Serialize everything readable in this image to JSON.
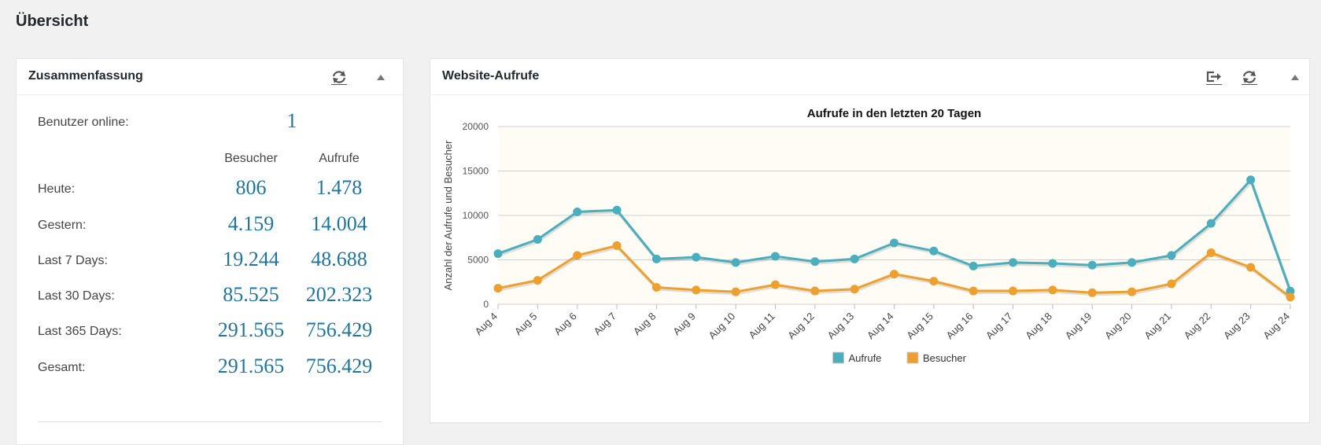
{
  "page": {
    "title": "Übersicht"
  },
  "summary": {
    "title": "Zusammenfassung",
    "online_label": "Benutzer online:",
    "online_value": "1",
    "col_visitors": "Besucher",
    "col_views": "Aufrufe",
    "rows": [
      {
        "label": "Heute:",
        "visitors": "806",
        "views": "1.478"
      },
      {
        "label": "Gestern:",
        "visitors": "4.159",
        "views": "14.004"
      },
      {
        "label": "Last 7 Days:",
        "visitors": "19.244",
        "views": "48.688"
      },
      {
        "label": "Last 30 Days:",
        "visitors": "85.525",
        "views": "202.323"
      },
      {
        "label": "Last 365 Days:",
        "visitors": "291.565",
        "views": "756.429"
      },
      {
        "label": "Gesamt:",
        "visitors": "291.565",
        "views": "756.429"
      }
    ]
  },
  "hits_box": {
    "title": "Website-Aufrufe"
  },
  "icons": [
    "refresh-icon",
    "toggle-arrow-icon",
    "export-icon"
  ],
  "colors": {
    "accent": "#21759b",
    "views": "#4aaebd",
    "visitors": "#eda02f",
    "plot_bg": "#fefcf4"
  },
  "chart_data": {
    "type": "line",
    "title": "Aufrufe in den letzten 20 Tagen",
    "ylabel": "Anzahl der Aufrufe und Besucher",
    "xlabel": "",
    "ylim": [
      0,
      20000
    ],
    "yticks": [
      "0",
      "5000",
      "10000",
      "15000",
      "20000"
    ],
    "categories": [
      "Aug 4",
      "Aug 5",
      "Aug 6",
      "Aug 7",
      "Aug 8",
      "Aug 9",
      "Aug 10",
      "Aug 11",
      "Aug 12",
      "Aug 13",
      "Aug 14",
      "Aug 15",
      "Aug 16",
      "Aug 17",
      "Aug 18",
      "Aug 19",
      "Aug 20",
      "Aug 21",
      "Aug 22",
      "Aug 23",
      "Aug 24"
    ],
    "series": [
      {
        "name": "Aufrufe",
        "color": "#4aaebd",
        "values": [
          5700,
          7300,
          10400,
          10600,
          5100,
          5300,
          4700,
          5400,
          4800,
          5100,
          6900,
          6000,
          4300,
          4700,
          4600,
          4400,
          4700,
          5500,
          9100,
          14000,
          1478
        ]
      },
      {
        "name": "Besucher",
        "color": "#eda02f",
        "values": [
          1800,
          2700,
          5500,
          6600,
          1900,
          1600,
          1400,
          2200,
          1500,
          1700,
          3400,
          2600,
          1500,
          1500,
          1600,
          1300,
          1400,
          2300,
          5800,
          4159,
          806
        ]
      }
    ],
    "legend": "bottom-center",
    "grid": true
  }
}
